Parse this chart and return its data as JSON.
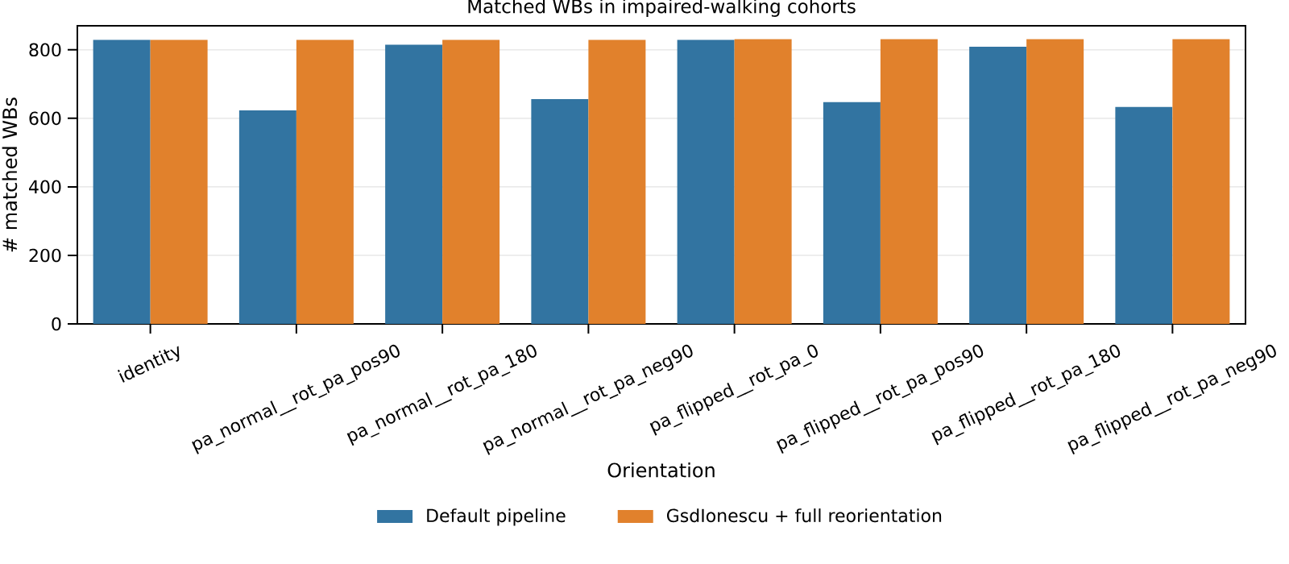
{
  "chart_data": {
    "type": "bar",
    "title": "Matched WBs in impaired-walking cohorts",
    "xlabel": "Orientation",
    "ylabel": "# matched WBs",
    "categories": [
      "identity",
      "pa_normal__rot_pa_pos90",
      "pa_normal__rot_pa_180",
      "pa_normal__rot_pa_neg90",
      "pa_flipped__rot_pa_0",
      "pa_flipped__rot_pa_pos90",
      "pa_flipped__rot_pa_180",
      "pa_flipped__rot_pa_neg90"
    ],
    "series": [
      {
        "name": "Default pipeline",
        "color": "#3274a1",
        "values": [
          829,
          623,
          815,
          656,
          829,
          647,
          809,
          633
        ]
      },
      {
        "name": "GsdIonescu + full reorientation",
        "color": "#e1812c",
        "values": [
          829,
          829,
          829,
          829,
          831,
          831,
          831,
          831
        ]
      }
    ],
    "ylim": [
      0,
      870
    ],
    "yticks": [
      0,
      200,
      400,
      600,
      800
    ],
    "grid": "y",
    "legend": "bottom"
  }
}
